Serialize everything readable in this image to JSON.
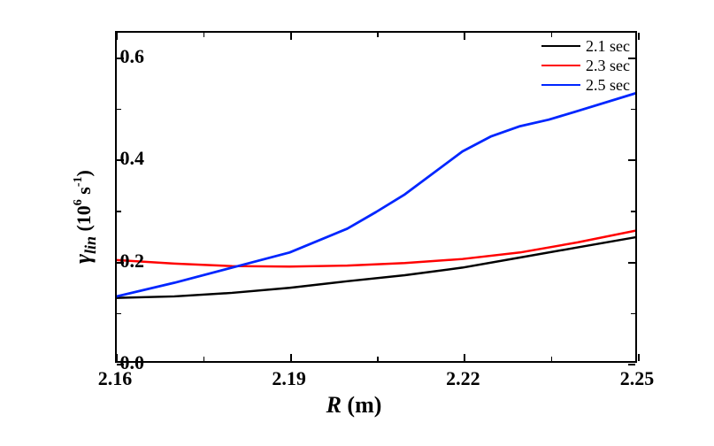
{
  "chart": {
    "type": "line",
    "background_color": "#ffffff",
    "border_color": "#000000",
    "border_width": 2.5,
    "x_axis": {
      "label_var": "R",
      "label_unit": " (m)",
      "min": 2.16,
      "max": 2.25,
      "ticks": [
        2.16,
        2.19,
        2.22,
        2.25
      ],
      "minor_step": 0.015,
      "fontsize": 22,
      "label_fontsize": 26
    },
    "y_axis": {
      "label_var": "γ",
      "label_sub": "lin",
      "label_unit_pre": " (10",
      "label_unit_sup": "6",
      "label_unit_post": " s",
      "label_unit_sup2": "-1",
      "label_unit_close": ")",
      "min": 0.0,
      "max": 0.65,
      "ticks": [
        0.0,
        0.2,
        0.4,
        0.6
      ],
      "minor_step": 0.1,
      "fontsize": 22,
      "label_fontsize": 26
    },
    "legend": {
      "position": "top-right",
      "fontsize": 18,
      "items": [
        {
          "label": "2.1 sec",
          "color": "#000000"
        },
        {
          "label": "2.3 sec",
          "color": "#ff0000"
        },
        {
          "label": "2.5 sec",
          "color": "#0026ff"
        }
      ]
    },
    "series": [
      {
        "name": "2.1 sec",
        "color": "#000000",
        "line_width": 2.5,
        "x": [
          2.16,
          2.17,
          2.18,
          2.19,
          2.2,
          2.21,
          2.22,
          2.23,
          2.24,
          2.25
        ],
        "y": [
          0.125,
          0.128,
          0.135,
          0.145,
          0.158,
          0.17,
          0.185,
          0.205,
          0.225,
          0.245
        ]
      },
      {
        "name": "2.3 sec",
        "color": "#ff0000",
        "line_width": 2.5,
        "x": [
          2.16,
          2.17,
          2.18,
          2.19,
          2.2,
          2.21,
          2.22,
          2.23,
          2.24,
          2.25
        ],
        "y": [
          0.2,
          0.193,
          0.188,
          0.187,
          0.189,
          0.194,
          0.202,
          0.215,
          0.235,
          0.258
        ]
      },
      {
        "name": "2.5 sec",
        "color": "#0026ff",
        "line_width": 2.8,
        "x": [
          2.16,
          2.17,
          2.18,
          2.19,
          2.2,
          2.205,
          2.21,
          2.22,
          2.225,
          2.23,
          2.235,
          2.24,
          2.25
        ],
        "y": [
          0.128,
          0.155,
          0.185,
          0.215,
          0.262,
          0.295,
          0.33,
          0.415,
          0.445,
          0.465,
          0.478,
          0.495,
          0.53
        ]
      }
    ]
  }
}
